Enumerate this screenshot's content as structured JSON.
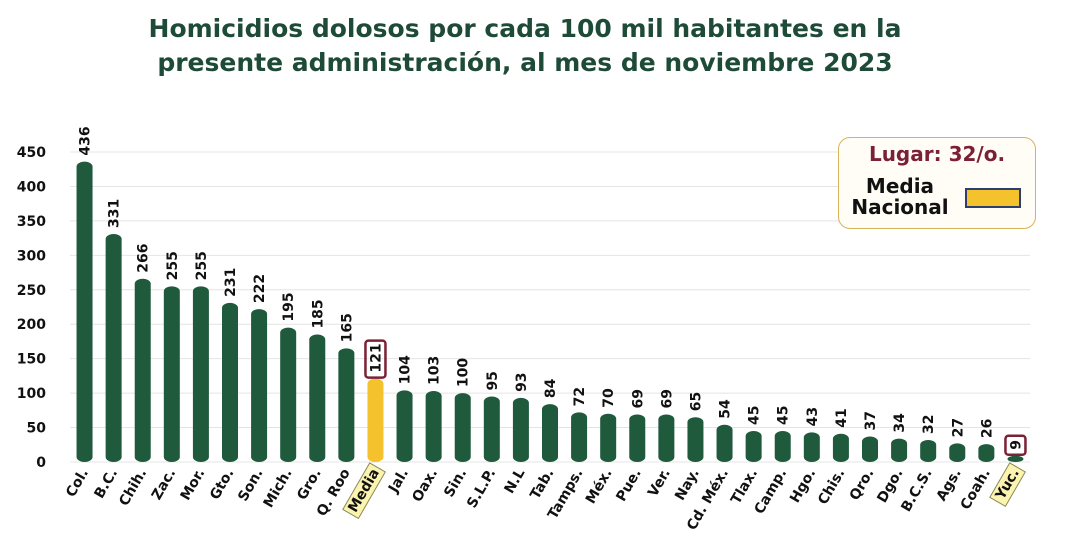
{
  "chart_data": {
    "type": "bar",
    "title": "Homicidios dolosos por cada 100 mil habitantes en la presente administración, al mes de noviembre 2023",
    "categories": [
      "Col.",
      "B.C.",
      "Chih.",
      "Zac.",
      "Mor.",
      "Gto.",
      "Son.",
      "Mich.",
      "Gro.",
      "Q. Roo",
      "Media",
      "Jal.",
      "Oax.",
      "Sin.",
      "S.L.P.",
      "N.L",
      "Tab.",
      "Tamps.",
      "Méx.",
      "Pue.",
      "Ver.",
      "Nay.",
      "Cd. Méx.",
      "Tlax.",
      "Camp.",
      "Hgo.",
      "Chis.",
      "Qro.",
      "Dgo.",
      "B.C.S.",
      "Ags.",
      "Coah.",
      "Yuc."
    ],
    "values": [
      436,
      331,
      266,
      255,
      255,
      231,
      222,
      195,
      185,
      165,
      121,
      104,
      103,
      100,
      95,
      93,
      84,
      72,
      70,
      69,
      69,
      65,
      54,
      45,
      45,
      43,
      41,
      37,
      34,
      32,
      27,
      26,
      9
    ],
    "color": "#1f5a3d",
    "highlight_color": "#f3c22c",
    "highlighted_categories": [
      10,
      32
    ],
    "ylim": [
      0,
      450
    ],
    "yticks": [
      0,
      50,
      100,
      150,
      200,
      250,
      300,
      350,
      400,
      450
    ],
    "grid": true,
    "legend": {
      "rank": "Lugar: 32/o.",
      "label": "Media Nacional"
    }
  }
}
